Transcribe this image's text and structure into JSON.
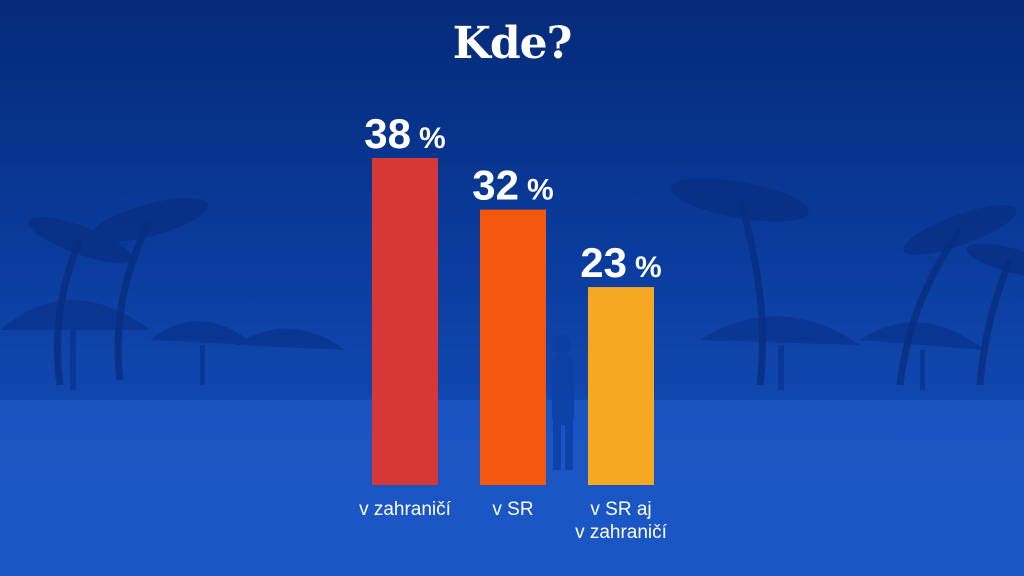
{
  "chart_data": {
    "type": "bar",
    "title": "Kde?",
    "categories": [
      [
        "v zahraničí"
      ],
      [
        "v SR"
      ],
      [
        "v SR aj",
        "v zahraničí"
      ]
    ],
    "values": [
      38,
      32,
      23
    ],
    "value_unit": "%",
    "colors": [
      "#d63837",
      "#f4580f",
      "#f7a823"
    ],
    "ylim": [
      0,
      38
    ],
    "grid": false,
    "legend": "none"
  },
  "background": {
    "description_icon": "palm-beach-photo",
    "tint": "#0b3ea8"
  }
}
